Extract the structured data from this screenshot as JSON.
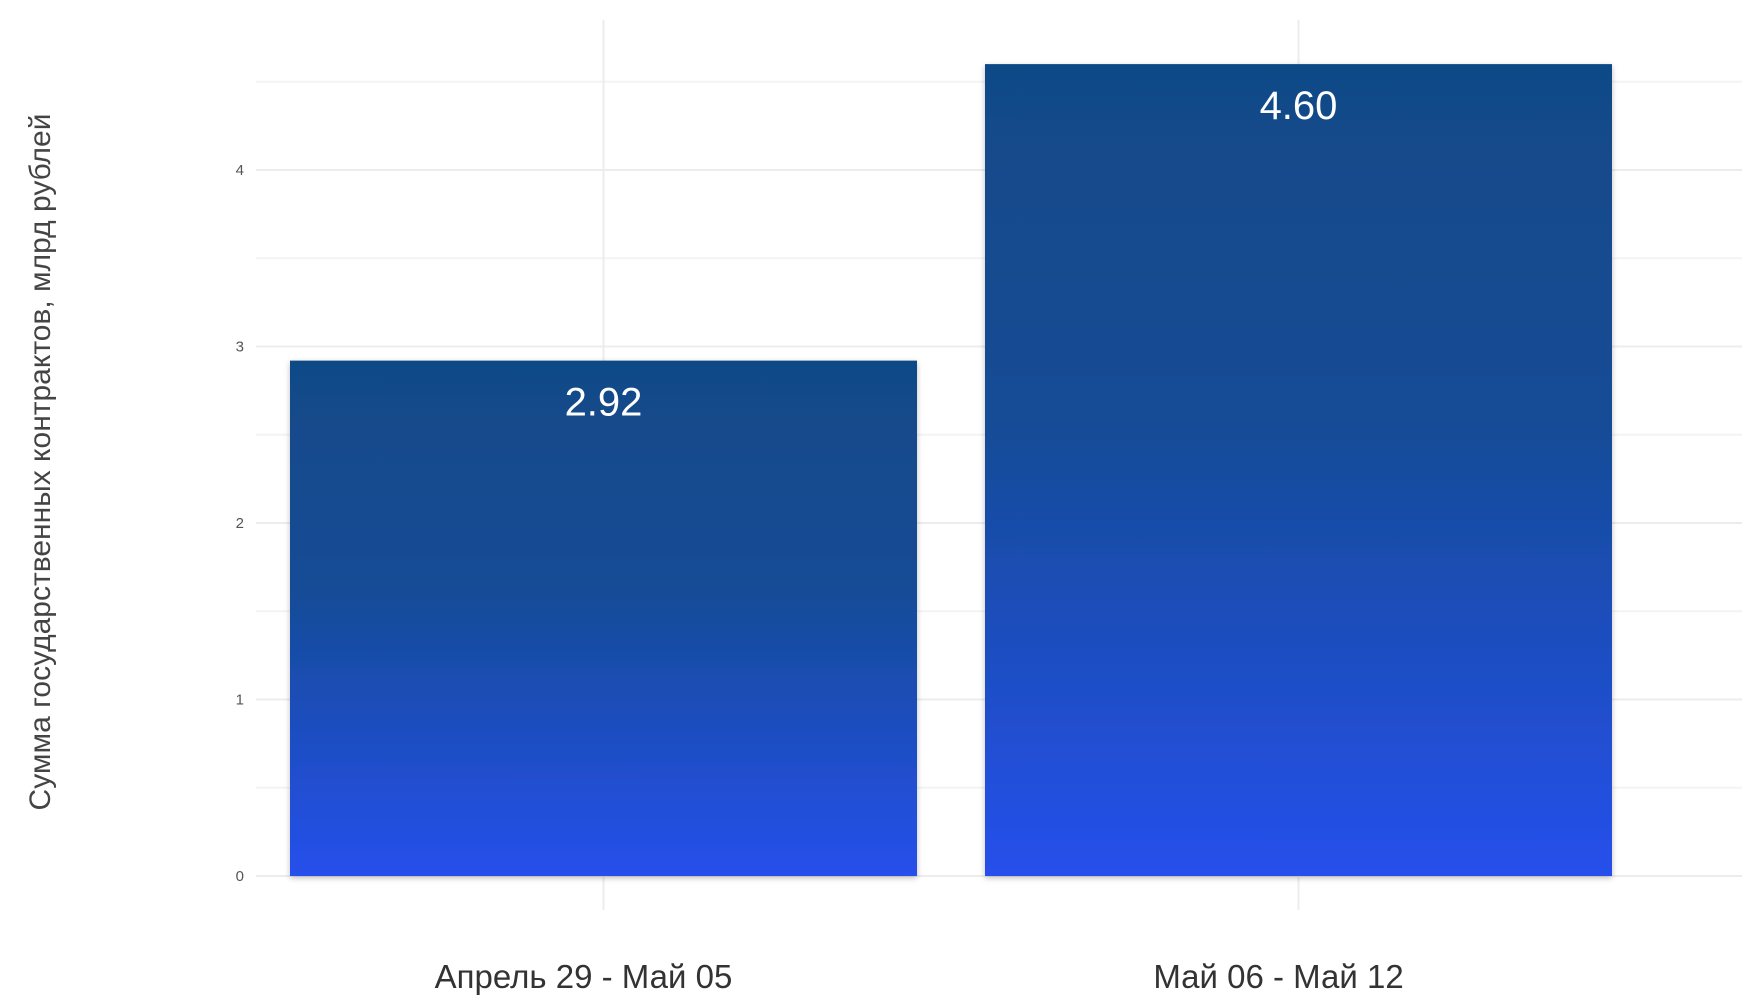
{
  "chart_data": {
    "type": "bar",
    "categories": [
      "Апрель 29 - Май 05",
      "Май 06 - Май 12"
    ],
    "values": [
      2.92,
      4.6
    ],
    "value_labels": [
      "2.92",
      "4.60"
    ],
    "title": "",
    "xlabel": "",
    "ylabel": "Сумма государственных контрактов, млрд рублей",
    "ylim": [
      0,
      4.75
    ],
    "yticks": [
      0,
      1,
      2,
      3,
      4
    ],
    "ytick_labels": [
      "0",
      "1",
      "2",
      "3",
      "4"
    ],
    "grid": true,
    "legend": "none",
    "colors": {
      "bar_top": "#114a87",
      "bar_bottom": "#2650ec"
    }
  }
}
